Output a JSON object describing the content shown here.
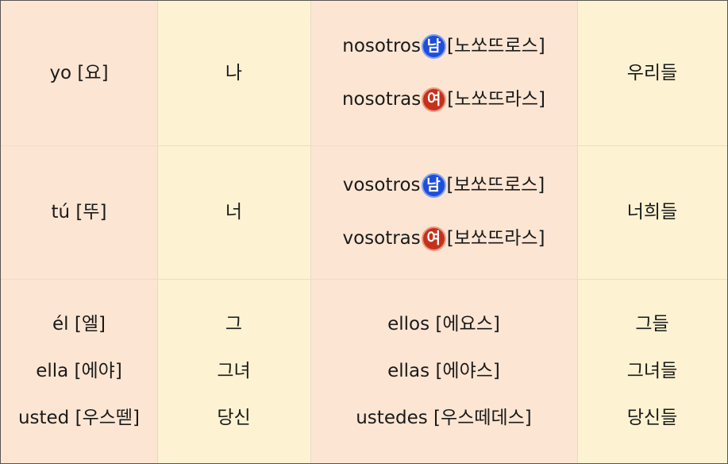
{
  "rows": [
    {
      "spanish": [
        "yo [요]"
      ],
      "korean": [
        "나"
      ],
      "plural": [
        {
          "word": "nosotros",
          "badge": "남",
          "gender": "m",
          "reading": "[노쏘뜨로스]"
        },
        {
          "word": "nosotras",
          "badge": "여",
          "gender": "f",
          "reading": "[노쏘뜨라스]"
        }
      ],
      "plural_korean": [
        "우리들"
      ]
    },
    {
      "spanish": [
        "tú [뚜]"
      ],
      "korean": [
        "너"
      ],
      "plural": [
        {
          "word": "vosotros",
          "badge": "남",
          "gender": "m",
          "reading": "[보쏘뜨로스]"
        },
        {
          "word": "vosotras",
          "badge": "여",
          "gender": "f",
          "reading": "[보쏘뜨라스]"
        }
      ],
      "plural_korean": [
        "너희들"
      ]
    },
    {
      "spanish": [
        "él [엘]",
        "ella [에야]",
        "usted [우스뗃]"
      ],
      "korean": [
        "그",
        "그녀",
        "당신"
      ],
      "plural_plain": [
        "ellos [에요스]",
        "ellas [에야스]",
        "ustedes [우스떼데스]"
      ],
      "plural_korean": [
        "그들",
        "그녀들",
        "당신들"
      ]
    }
  ],
  "colors": {
    "peach": "#fce6d3",
    "cream": "#fdf3d2",
    "masculine_badge": "#1f4ed8",
    "feminine_badge": "#c5321c"
  }
}
